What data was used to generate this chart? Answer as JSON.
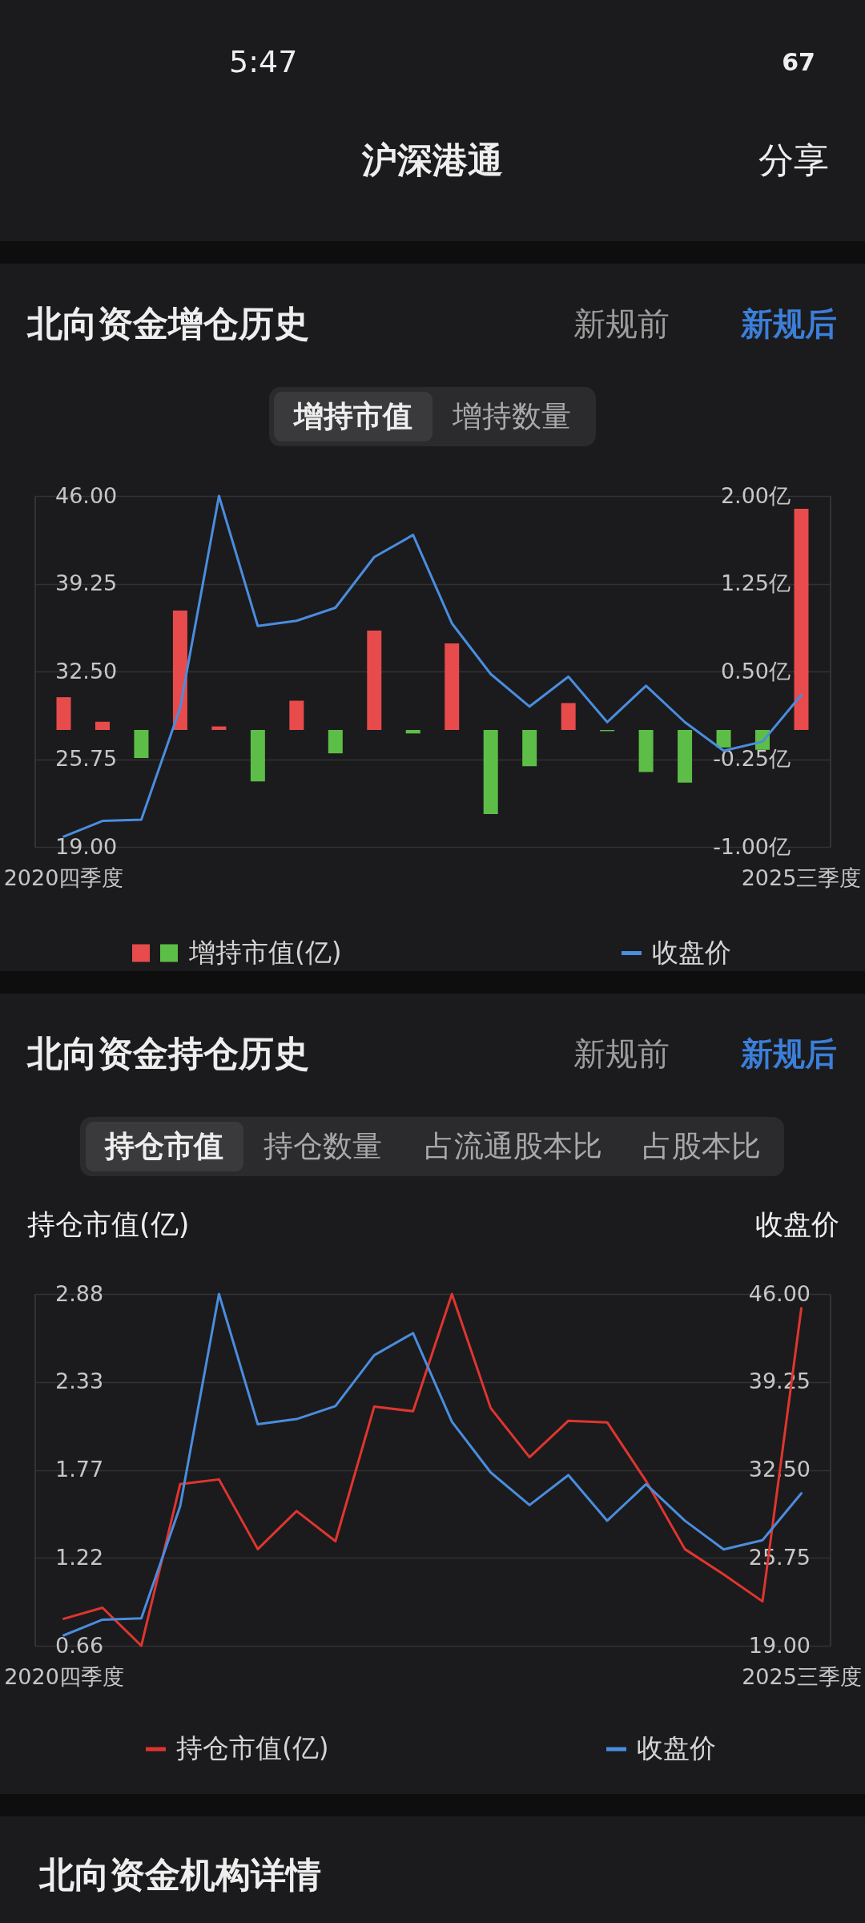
{
  "chart_data": [
    {
      "type": "other",
      "title": "沪深港通",
      "annotations": [
        "5:47",
        "67",
        "分享"
      ]
    },
    {
      "type": "bar",
      "title": "北向资金增仓历史",
      "annotations": [
        "新规前",
        "新规后",
        "增持市值",
        "增持数量"
      ],
      "categories": [
        "2020四季度",
        null,
        null,
        null,
        null,
        null,
        null,
        null,
        null,
        null,
        null,
        null,
        null,
        null,
        null,
        null,
        null,
        null,
        null,
        "2025三季度"
      ],
      "series": [
        {
          "name": "增持市值(亿)",
          "type": "bar",
          "axis": "y2",
          "colors": [
            "#e84b4b",
            "#e84b4b",
            "#5dbe47",
            "#e84b4b",
            "#e84b4b",
            "#5dbe47",
            "#e84b4b",
            "#5dbe47",
            "#e84b4b",
            "#5dbe47",
            "#e84b4b",
            "#5dbe47",
            "#5dbe47",
            "#e84b4b",
            "#5dbe47",
            "#5dbe47",
            "#5dbe47",
            "#5dbe47",
            "#5dbe47",
            "#e84b4b"
          ],
          "values": [
            0.28,
            0.07,
            -0.24,
            1.02,
            0.03,
            -0.44,
            0.25,
            -0.2,
            0.85,
            -0.03,
            0.74,
            -0.72,
            -0.31,
            0.23,
            -0.01,
            -0.36,
            -0.45,
            -0.15,
            -0.17,
            1.89
          ]
        },
        {
          "name": "收盘价",
          "type": "line",
          "color": "#4a8ddf",
          "values": [
            19.8,
            21.0,
            21.1,
            29.7,
            46.0,
            36.0,
            36.4,
            37.4,
            41.3,
            43.0,
            36.2,
            32.3,
            29.8,
            32.1,
            28.6,
            31.4,
            28.6,
            26.4,
            27.1,
            30.7
          ]
        }
      ],
      "ylim": [
        19,
        46
      ],
      "yticks": [
        {
          "value": 19,
          "label": "19.00"
        },
        25.75,
        {
          "value": 32.5,
          "label": "32.50"
        },
        39.25,
        {
          "value": 46,
          "label": "46.00"
        }
      ],
      "y2lim": [
        -1,
        2
      ],
      "y2ticks": [
        {
          "value": -1,
          "label": "-1.00亿"
        },
        {
          "value": -0.25,
          "label": "-0.25亿"
        },
        {
          "value": 0.5,
          "label": "0.50亿"
        },
        {
          "value": 1.25,
          "label": "1.25亿"
        },
        {
          "value": 2,
          "label": "2.00亿"
        }
      ],
      "grid": "y",
      "legend": "bottom"
    },
    {
      "type": "line",
      "title": "北向资金持仓历史",
      "annotations": [
        "新规前",
        "新规后",
        "持仓市值",
        "持仓数量",
        "占流通股本比",
        "占股本比"
      ],
      "ylabel": "持仓市值(亿)",
      "y2label": "收盘价",
      "categories": [
        "2020四季度",
        null,
        null,
        null,
        null,
        null,
        null,
        null,
        null,
        null,
        null,
        null,
        null,
        null,
        null,
        null,
        null,
        null,
        null,
        "2025三季度"
      ],
      "series": [
        {
          "name": "持仓市值(亿)",
          "color": "#e0352f",
          "values": [
            0.83,
            0.9,
            0.66,
            1.68,
            1.71,
            1.27,
            1.51,
            1.32,
            2.17,
            2.14,
            2.88,
            2.16,
            1.85,
            2.08,
            2.07,
            1.7,
            1.27,
            1.11,
            0.94,
            2.79
          ]
        },
        {
          "name": "收盘价",
          "color": "#4a8ddf",
          "axis": "y2",
          "values": [
            19.8,
            21.0,
            21.1,
            29.7,
            46.0,
            36.0,
            36.4,
            37.4,
            41.3,
            43.0,
            36.2,
            32.3,
            29.8,
            32.1,
            28.6,
            31.4,
            28.6,
            26.4,
            27.1,
            30.7
          ]
        }
      ],
      "ylim": [
        0.66,
        2.88
      ],
      "yticks": [
        0.66,
        {
          "value": 1.215,
          "label": "1.22"
        },
        1.77,
        {
          "value": 2.325,
          "label": "2.33"
        },
        2.88
      ],
      "y2lim": [
        19,
        46
      ],
      "y2ticks": [
        {
          "value": 19,
          "label": "19.00"
        },
        25.75,
        {
          "value": 32.5,
          "label": "32.50"
        },
        39.25,
        {
          "value": 46,
          "label": "46.00"
        }
      ],
      "grid": "y",
      "legend": "bottom"
    },
    {
      "type": "other",
      "title": "北向资金机构详情"
    }
  ]
}
